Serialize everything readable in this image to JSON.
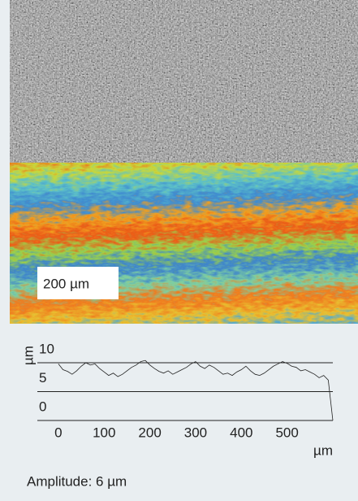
{
  "chart_data": {
    "type": "line",
    "x": [
      0,
      10,
      20,
      30,
      40,
      50,
      60,
      70,
      80,
      90,
      100,
      110,
      120,
      130,
      140,
      150,
      160,
      170,
      180,
      190,
      200,
      210,
      220,
      230,
      240,
      250,
      260,
      270,
      280,
      290,
      300,
      310,
      320,
      330,
      340,
      350,
      360,
      370,
      380,
      390,
      400,
      410,
      420,
      430,
      440,
      450,
      460,
      470,
      480,
      490,
      500,
      510,
      520,
      530,
      540,
      550,
      560,
      570,
      580,
      590,
      600
    ],
    "values": [
      9.8,
      8.8,
      8.5,
      8.0,
      8.6,
      9.4,
      10.0,
      9.6,
      9.8,
      9.0,
      8.4,
      7.8,
      8.2,
      7.6,
      8.0,
      8.6,
      9.2,
      9.6,
      10.2,
      10.4,
      9.6,
      9.0,
      8.5,
      8.2,
      8.6,
      8.0,
      8.4,
      8.8,
      9.2,
      9.8,
      10.2,
      9.4,
      9.0,
      9.6,
      9.2,
      8.6,
      8.0,
      8.2,
      7.8,
      8.4,
      8.8,
      9.4,
      8.6,
      8.0,
      7.8,
      8.2,
      8.8,
      9.4,
      9.8,
      10.2,
      9.9,
      9.4,
      9.2,
      8.6,
      8.8,
      8.4,
      8.0,
      7.4,
      7.8,
      7.0,
      0
    ],
    "color": "#222222",
    "xlim": [
      -46,
      600
    ],
    "ylim": [
      0,
      10
    ],
    "xticks": [
      0,
      100,
      200,
      300,
      400,
      500
    ],
    "yticks": [
      0,
      5,
      10
    ],
    "xlabel": "µm",
    "ylabel": "µm",
    "grid": true
  },
  "scale_bar_label": "200 µm",
  "caption": "Amplitude: 6 µm"
}
